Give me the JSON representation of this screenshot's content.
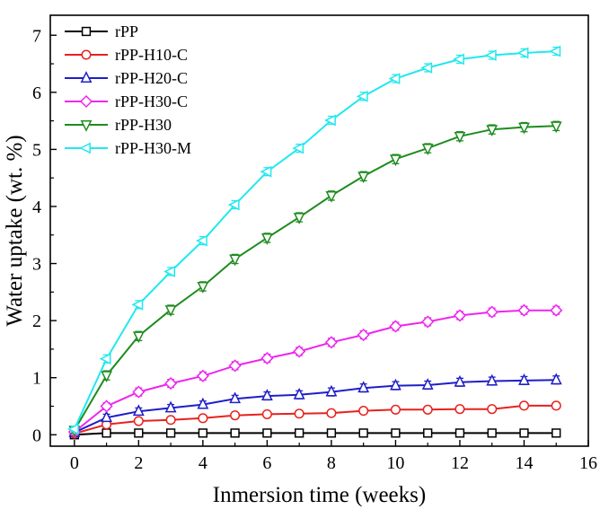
{
  "chart_data": {
    "type": "line",
    "title": "",
    "xlabel": "Inmersion time (weeks)",
    "ylabel": "Water uptake (wt. %)",
    "xlim": [
      -0.75,
      16
    ],
    "ylim": [
      -0.2,
      7.35
    ],
    "xticks": [
      0,
      2,
      4,
      6,
      8,
      10,
      12,
      14,
      16
    ],
    "yticks": [
      0,
      1,
      2,
      3,
      4,
      5,
      6,
      7
    ],
    "grid": false,
    "legend_position": "top-left",
    "x": [
      0,
      1,
      2,
      3,
      4,
      5,
      6,
      7,
      8,
      9,
      10,
      11,
      12,
      13,
      14,
      15
    ],
    "series": [
      {
        "name": "rPP",
        "color": "#000000",
        "marker": "square",
        "values": [
          0.0,
          0.03,
          0.03,
          0.03,
          0.03,
          0.03,
          0.03,
          0.03,
          0.03,
          0.03,
          0.03,
          0.03,
          0.03,
          0.03,
          0.03,
          0.03
        ],
        "error": [
          0.02,
          0.01,
          0.01,
          0.01,
          0.01,
          0.01,
          0.01,
          0.01,
          0.01,
          0.01,
          0.01,
          0.01,
          0.01,
          0.01,
          0.01,
          0.01
        ]
      },
      {
        "name": "rPP-H10-C",
        "color": "#e8211e",
        "marker": "circle",
        "values": [
          0.02,
          0.18,
          0.24,
          0.26,
          0.29,
          0.34,
          0.36,
          0.37,
          0.38,
          0.42,
          0.44,
          0.44,
          0.45,
          0.45,
          0.51,
          0.51
        ],
        "error": [
          0.03,
          0.03,
          0.03,
          0.03,
          0.03,
          0.03,
          0.03,
          0.03,
          0.03,
          0.03,
          0.03,
          0.03,
          0.03,
          0.03,
          0.03,
          0.03
        ]
      },
      {
        "name": "rPP-H20-C",
        "color": "#1e1ec8",
        "marker": "triangle-up",
        "values": [
          0.04,
          0.3,
          0.41,
          0.47,
          0.53,
          0.63,
          0.68,
          0.7,
          0.75,
          0.82,
          0.86,
          0.87,
          0.92,
          0.94,
          0.95,
          0.96
        ],
        "error": [
          0.04,
          0.06,
          0.06,
          0.06,
          0.06,
          0.06,
          0.07,
          0.07,
          0.07,
          0.07,
          0.07,
          0.07,
          0.07,
          0.07,
          0.07,
          0.07
        ]
      },
      {
        "name": "rPP-H30-C",
        "color": "#ee25ee",
        "marker": "diamond",
        "values": [
          0.05,
          0.5,
          0.75,
          0.9,
          1.03,
          1.21,
          1.34,
          1.46,
          1.62,
          1.75,
          1.9,
          1.98,
          2.09,
          2.15,
          2.18,
          2.18
        ],
        "error": [
          0.04,
          0.06,
          0.07,
          0.07,
          0.07,
          0.07,
          0.07,
          0.07,
          0.07,
          0.07,
          0.07,
          0.07,
          0.07,
          0.07,
          0.07,
          0.07
        ]
      },
      {
        "name": "rPP-H30",
        "color": "#1e8c1e",
        "marker": "triangle-down",
        "values": [
          0.08,
          1.04,
          1.73,
          2.19,
          2.6,
          3.08,
          3.45,
          3.81,
          4.19,
          4.53,
          4.83,
          5.02,
          5.23,
          5.35,
          5.39,
          5.41
        ],
        "error": [
          0.05,
          0.08,
          0.08,
          0.08,
          0.08,
          0.08,
          0.08,
          0.08,
          0.08,
          0.08,
          0.08,
          0.08,
          0.08,
          0.08,
          0.08,
          0.08
        ]
      },
      {
        "name": "rPP-H30-M",
        "color": "#20e8f0",
        "marker": "triangle-left",
        "values": [
          0.1,
          1.33,
          2.28,
          2.86,
          3.4,
          4.03,
          4.61,
          5.02,
          5.51,
          5.93,
          6.24,
          6.43,
          6.58,
          6.65,
          6.69,
          6.72
        ],
        "error": [
          0.05,
          0.07,
          0.07,
          0.07,
          0.07,
          0.07,
          0.07,
          0.07,
          0.07,
          0.07,
          0.07,
          0.07,
          0.07,
          0.07,
          0.07,
          0.07
        ]
      }
    ]
  }
}
